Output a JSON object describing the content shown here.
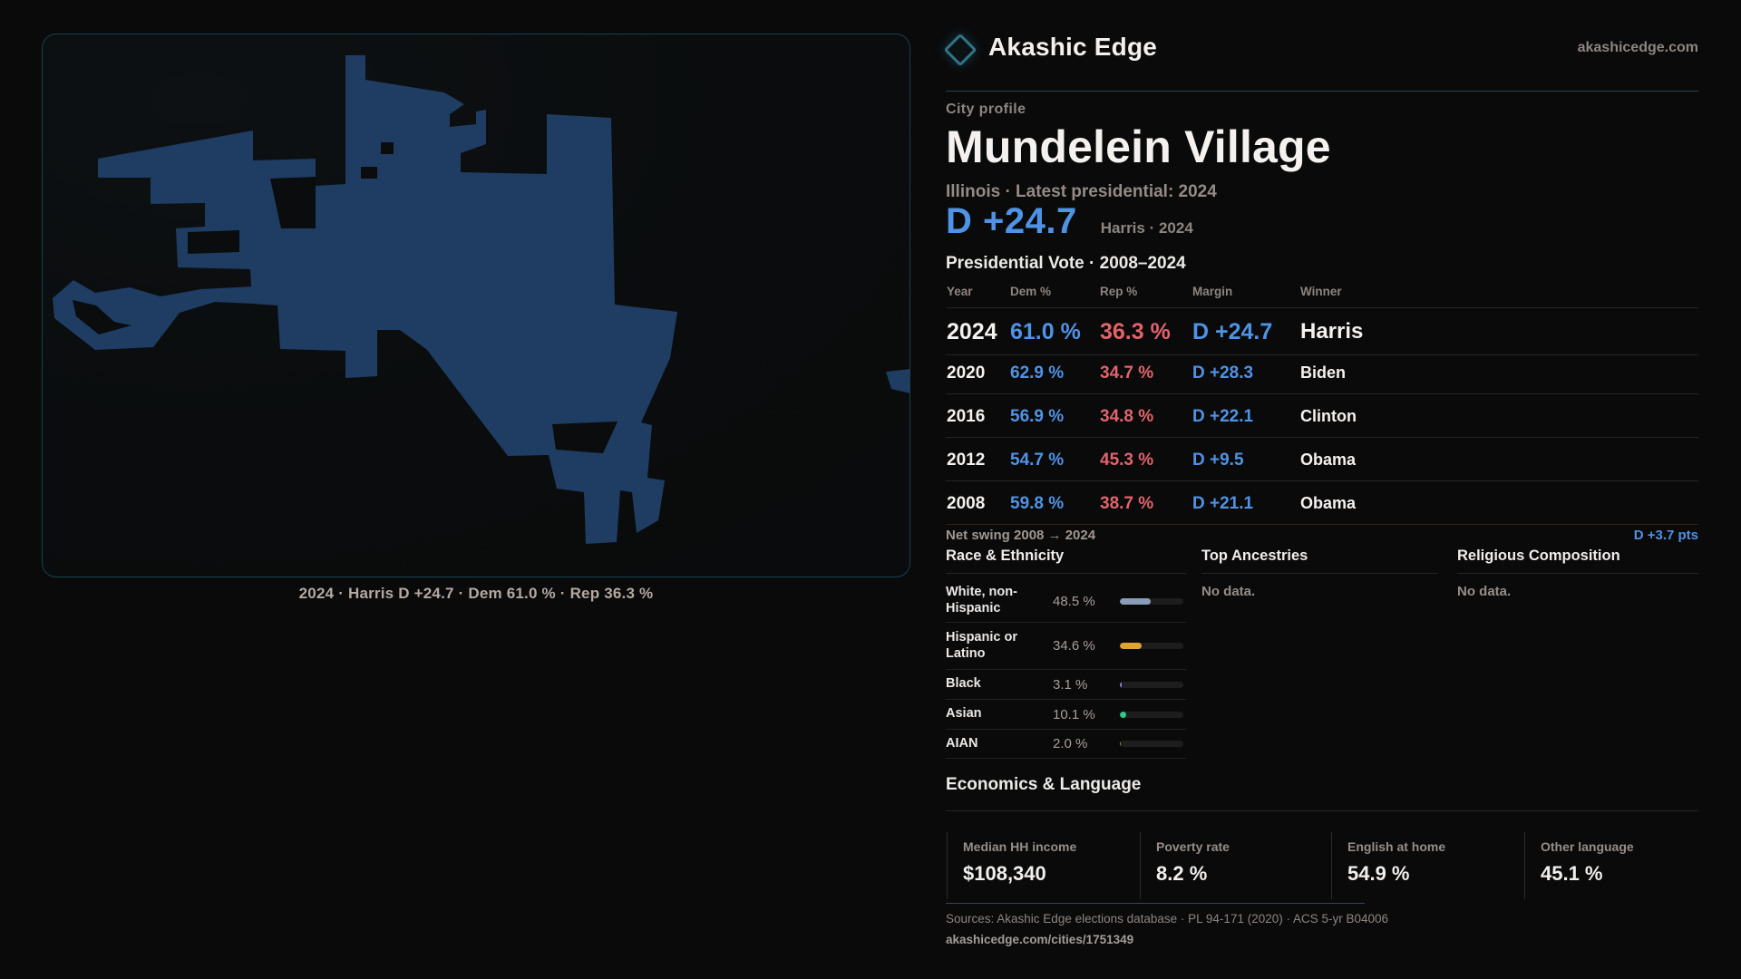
{
  "brand": {
    "name": "Akashic Edge",
    "domain": "akashicedge.com"
  },
  "profile": {
    "kicker": "City profile",
    "title": "Mundelein Village",
    "subtitle": "Illinois · Latest presidential: 2024"
  },
  "headline": {
    "margin": "D +24.7",
    "context": "Harris · 2024"
  },
  "table": {
    "title": "Presidential Vote · 2008–2024",
    "columns": [
      "Year",
      "Dem %",
      "Rep %",
      "Margin",
      "Winner"
    ],
    "rows": [
      {
        "year": "2024",
        "dem": "61.0 %",
        "rep": "36.3 %",
        "margin": "D +24.7",
        "winner": "Harris"
      },
      {
        "year": "2020",
        "dem": "62.9 %",
        "rep": "34.7 %",
        "margin": "D +28.3",
        "winner": "Biden"
      },
      {
        "year": "2016",
        "dem": "56.9 %",
        "rep": "34.8 %",
        "margin": "D +22.1",
        "winner": "Clinton"
      },
      {
        "year": "2012",
        "dem": "54.7 %",
        "rep": "45.3 %",
        "margin": "D +9.5",
        "winner": "Obama"
      },
      {
        "year": "2008",
        "dem": "59.8 %",
        "rep": "38.7 %",
        "margin": "D +21.1",
        "winner": "Obama"
      }
    ]
  },
  "net_swing": {
    "label": "Net swing 2008 → 2024",
    "value": "D +3.7 pts"
  },
  "race": {
    "title": "Race & Ethnicity",
    "rows": [
      {
        "label": "White, non-Hispanic",
        "value": "48.5 %",
        "pct": 48.5,
        "color": "#8b9cb8"
      },
      {
        "label": "Hispanic or Latino",
        "value": "34.6 %",
        "pct": 34.6,
        "color": "#dfa32f"
      },
      {
        "label": "Black",
        "value": "3.1 %",
        "pct": 3.1,
        "color": "#8d7ce0"
      },
      {
        "label": "Asian",
        "value": "10.1 %",
        "pct": 10.1,
        "color": "#2fc98f"
      },
      {
        "label": "AIAN",
        "value": "2.0 %",
        "pct": 2.0,
        "color": "#c1772d"
      }
    ]
  },
  "ancestries": {
    "title": "Top Ancestries",
    "empty": "No data."
  },
  "religion": {
    "title": "Religious Composition",
    "empty": "No data."
  },
  "economics": {
    "title": "Economics & Language",
    "cards": [
      {
        "label": "Median HH income",
        "value": "$108,340"
      },
      {
        "label": "Poverty rate",
        "value": "8.2 %"
      },
      {
        "label": "English at home",
        "value": "54.9 %"
      },
      {
        "label": "Other language",
        "value": "45.1 %"
      }
    ]
  },
  "map": {
    "caption": "2024 · Harris D +24.7 · Dem 61.0 % · Rep 36.3 %",
    "fill": "#1f3c63"
  },
  "footer": {
    "sources": "Sources: Akashic Edge elections database · PL 94-171 (2020) · ACS 5-yr B04006",
    "link": "akashicedge.com/cities/1751349"
  }
}
